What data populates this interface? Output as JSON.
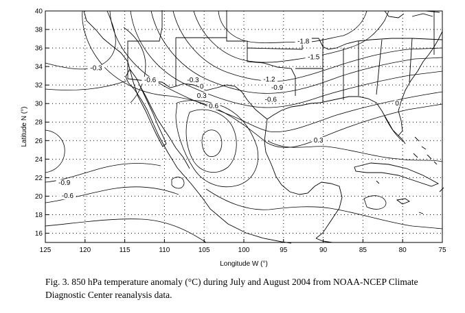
{
  "chart_data": {
    "type": "contour map",
    "title": "850 hPa temperature anomaly (°C) during July and August 2004",
    "xlabel": "Longitude W (°)",
    "ylabel": "Latitude N (°)",
    "xlim": [
      125,
      75
    ],
    "ylim": [
      15,
      40
    ],
    "xticks": [
      "125",
      "120",
      "115",
      "110",
      "105",
      "100",
      "95",
      "90",
      "85",
      "80",
      "75"
    ],
    "yticks": [
      "16",
      "18",
      "20",
      "22",
      "24",
      "26",
      "28",
      "30",
      "32",
      "34",
      "36",
      "38",
      "40"
    ],
    "grid": "dotted",
    "contour_labels": [
      {
        "text": "-1.8",
        "lon": 92.5,
        "lat": 36.5
      },
      {
        "text": "-1.5",
        "lon": 91.2,
        "lat": 34.8
      },
      {
        "text": "-1.2",
        "lon": 96.8,
        "lat": 32.4
      },
      {
        "text": "-0.9",
        "lon": 95.8,
        "lat": 31.5
      },
      {
        "text": "-0.6",
        "lon": 96.6,
        "lat": 30.2
      },
      {
        "text": "-0.3",
        "lon": 106.4,
        "lat": 32.3
      },
      {
        "text": "0",
        "lon": 105.3,
        "lat": 31.6
      },
      {
        "text": "0.3",
        "lon": 105.3,
        "lat": 30.6
      },
      {
        "text": "0.6",
        "lon": 103.8,
        "lat": 29.5
      },
      {
        "text": "-0.6",
        "lon": 111.8,
        "lat": 32.3
      },
      {
        "text": "-0.3",
        "lon": 118.6,
        "lat": 33.6
      },
      {
        "text": "-0.9",
        "lon": 122.6,
        "lat": 21.2
      },
      {
        "text": "-0.6",
        "lon": 122.2,
        "lat": 19.8
      },
      {
        "text": "0.3",
        "lon": 90.6,
        "lat": 25.8
      },
      {
        "text": "0",
        "lon": 80.7,
        "lat": 29.8
      }
    ]
  },
  "caption": {
    "line1": "Fig. 3. 850 hPa temperature anomaly (°C) during July and August 2004 from NOAA-NCEP Climate",
    "line2": "Diagnostic Center reanalysis data."
  }
}
